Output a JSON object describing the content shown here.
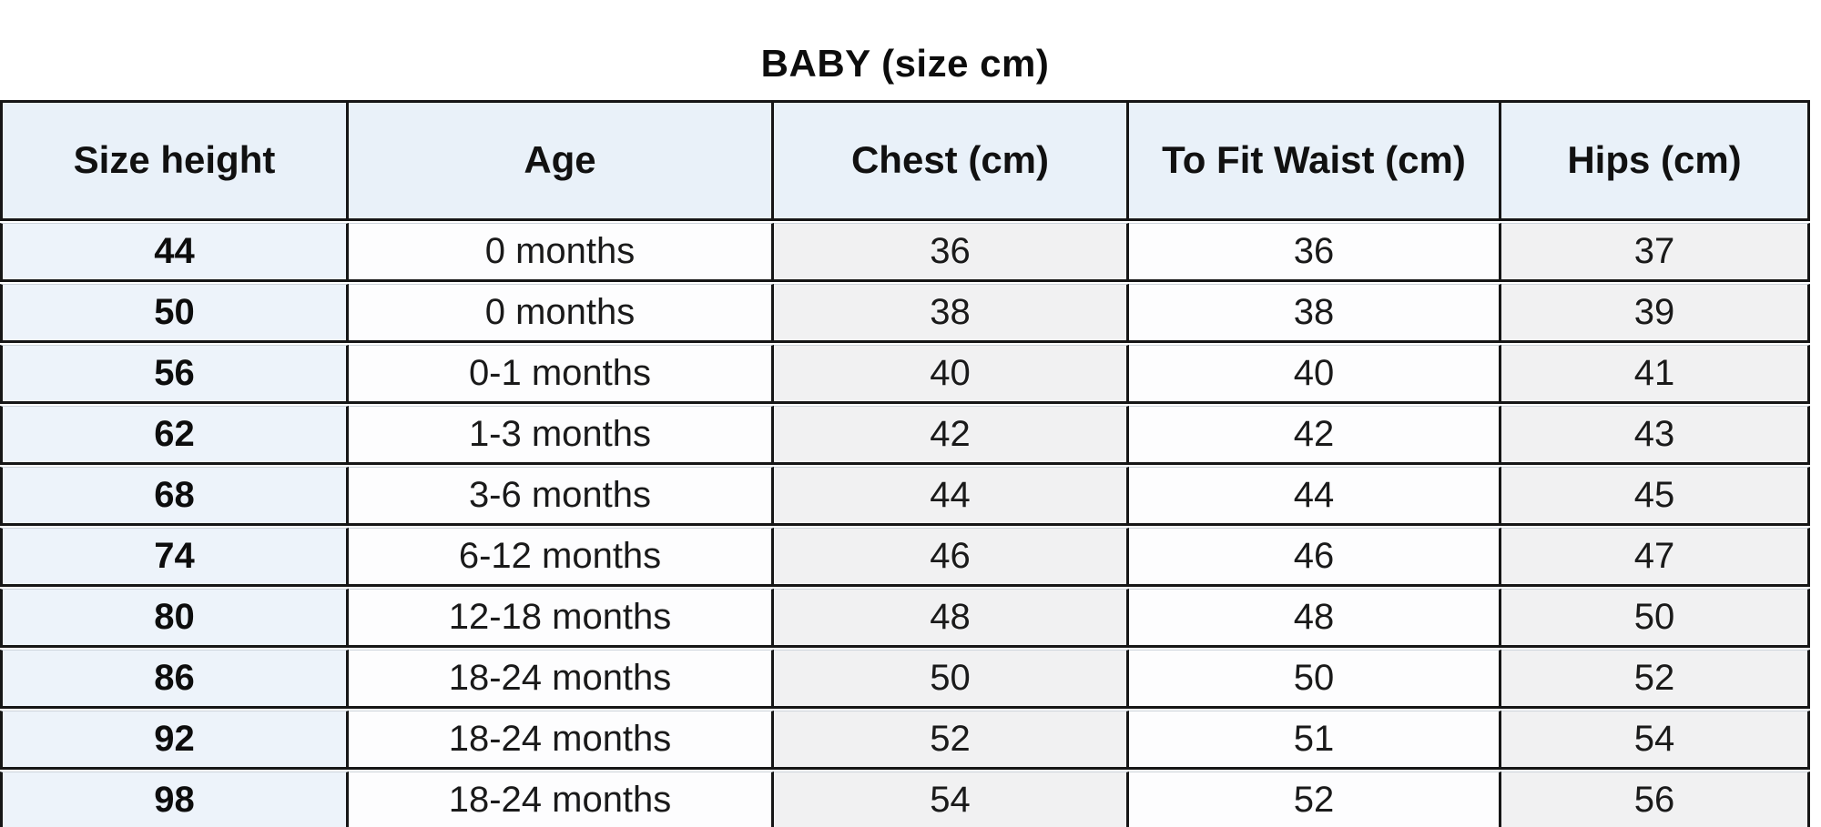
{
  "title": "BABY (size cm)",
  "chart_data": {
    "type": "table",
    "title": "BABY (size cm)",
    "columns": [
      "Size height",
      "Age",
      "Chest (cm)",
      "To Fit Waist (cm)",
      "Hips (cm)"
    ],
    "rows": [
      [
        "44",
        "0 months",
        "36",
        "36",
        "37"
      ],
      [
        "50",
        "0 months",
        "38",
        "38",
        "39"
      ],
      [
        "56",
        "0-1 months",
        "40",
        "40",
        "41"
      ],
      [
        "62",
        "1-3 months",
        "42",
        "42",
        "43"
      ],
      [
        "68",
        "3-6 months",
        "44",
        "44",
        "45"
      ],
      [
        "74",
        "6-12 months",
        "46",
        "46",
        "47"
      ],
      [
        "80",
        "12-18 months",
        "48",
        "48",
        "50"
      ],
      [
        "86",
        "18-24 months",
        "50",
        "50",
        "52"
      ],
      [
        "92",
        "18-24 months",
        "52",
        "51",
        "54"
      ],
      [
        "98",
        "18-24 months",
        "54",
        "52",
        "56"
      ]
    ]
  },
  "table": {
    "columns": [
      {
        "label": "Size height"
      },
      {
        "label": "Age"
      },
      {
        "label": "Chest (cm)"
      },
      {
        "label": "To Fit Waist (cm)"
      },
      {
        "label": "Hips (cm)"
      }
    ],
    "column_field_names": [
      "size-height",
      "age",
      "chest",
      "waist",
      "hips"
    ]
  },
  "colors": {
    "header_bg": "#e9f1f9",
    "size_column_bg": "#edf3fa",
    "shaded_column_bg": "#f1f1f2",
    "plain_column_bg": "#fdfdfe",
    "border": "#161616",
    "text": "#111111"
  }
}
